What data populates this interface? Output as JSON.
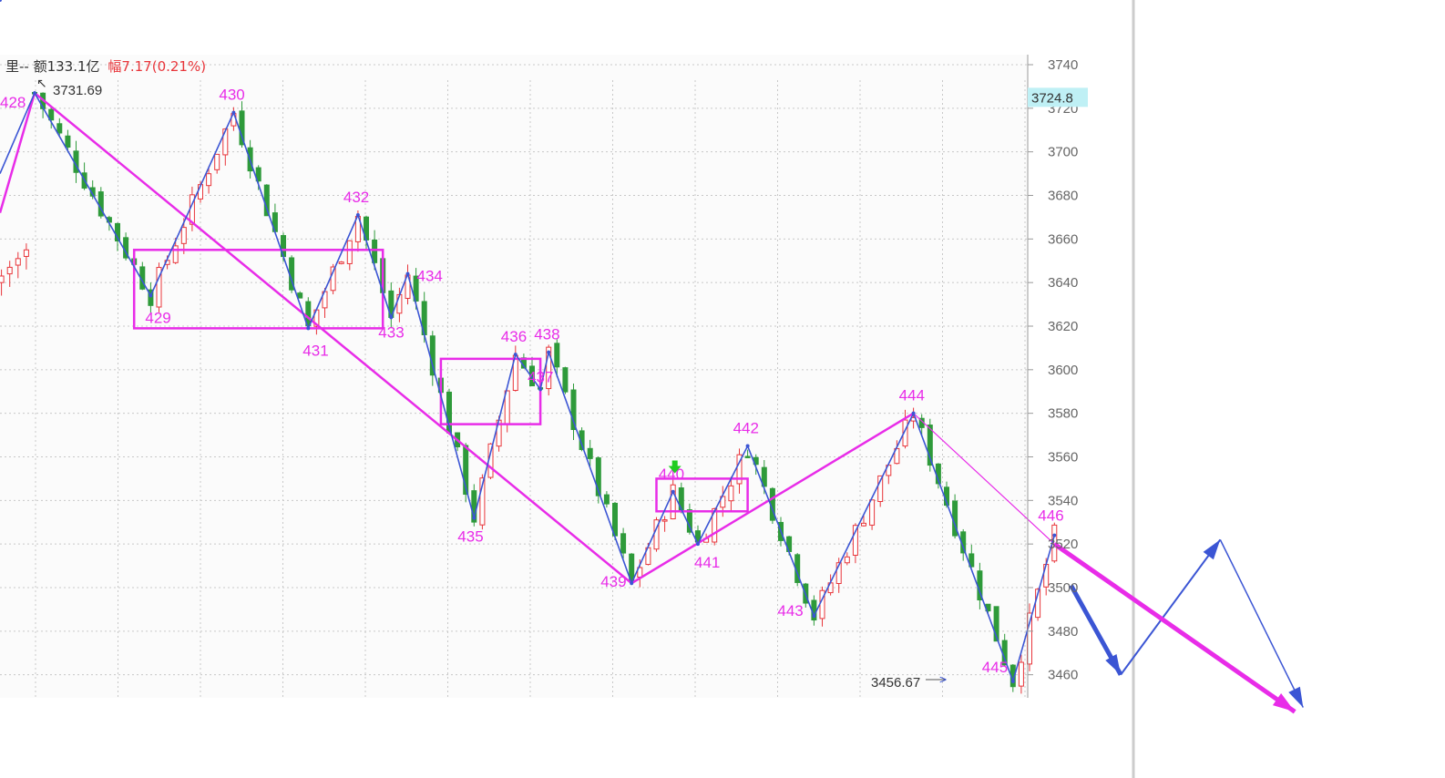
{
  "header": {
    "part1": "里-- 额133.1亿",
    "part2": "幅7.17(0.21%)",
    "part1_color": "#333333",
    "part2_color": "#e8353a"
  },
  "price_marks": {
    "high": "3731.69",
    "low": "3456.67"
  },
  "current_price": {
    "label": "3724.8",
    "value": 3724.8,
    "bg_color": "#bff0f5"
  },
  "colors": {
    "magenta": "#e82ce8",
    "blue": "#3b55d4",
    "candle_up": "#e8353a",
    "candle_down": "#2e9a3a",
    "signal_arrow": "#22cc22"
  },
  "chart_data": {
    "type": "candlestick",
    "ylim": [
      3440,
      3745
    ],
    "y_ticks": [
      3460,
      3480,
      3500,
      3520,
      3540,
      3560,
      3580,
      3600,
      3620,
      3640,
      3660,
      3680,
      3700,
      3720,
      3740
    ],
    "grid": true,
    "waves": [
      {
        "label": "428",
        "bar": 0,
        "price": 3727
      },
      {
        "label": "429",
        "bar": 14,
        "price": 3634
      },
      {
        "label": "430",
        "bar": 24,
        "price": 3718
      },
      {
        "label": "431",
        "bar": 33,
        "price": 3619
      },
      {
        "label": "432",
        "bar": 39,
        "price": 3671
      },
      {
        "label": "433",
        "bar": 43,
        "price": 3624
      },
      {
        "label": "434",
        "bar": 45,
        "price": 3644
      },
      {
        "label": "435",
        "bar": 53,
        "price": 3532
      },
      {
        "label": "436",
        "bar": 58,
        "price": 3607
      },
      {
        "label": "437",
        "bar": 61,
        "price": 3591
      },
      {
        "label": "438",
        "bar": 62,
        "price": 3608
      },
      {
        "label": "439",
        "bar": 72,
        "price": 3502
      },
      {
        "label": "440",
        "bar": 77,
        "price": 3544
      },
      {
        "label": "441",
        "bar": 80,
        "price": 3520
      },
      {
        "label": "442",
        "bar": 86,
        "price": 3565
      },
      {
        "label": "443",
        "bar": 94,
        "price": 3487
      },
      {
        "label": "444",
        "bar": 106,
        "price": 3580
      },
      {
        "label": "445",
        "bar": 118,
        "price": 3457
      },
      {
        "label": "446",
        "bar": 123,
        "price": 3524
      }
    ],
    "last_wave_point": {
      "bar": 125,
      "price": 3501
    },
    "boxes": [
      {
        "from_bar": 12,
        "to_bar": 42,
        "top": 3655,
        "bottom": 3619
      },
      {
        "from_bar": 49,
        "to_bar": 61,
        "top": 3605,
        "bottom": 3575
      },
      {
        "from_bar": 75,
        "to_bar": 86,
        "top": 3550,
        "bottom": 3535
      }
    ],
    "trend_lines": [
      {
        "from": {
          "bar": 0,
          "price": 3727
        },
        "to": {
          "bar": 72,
          "price": 3502
        }
      },
      {
        "from": {
          "bar": 72,
          "price": 3502
        },
        "to": {
          "bar": 106,
          "price": 3580
        }
      },
      {
        "from": {
          "bar": 106,
          "price": 3580
        },
        "to": {
          "bar": 123,
          "price": 3520
        }
      }
    ],
    "projections": {
      "blue": [
        {
          "bar": 125,
          "price": 3501
        },
        {
          "bar": 131,
          "price": 3460
        },
        {
          "bar": 143,
          "price": 3522
        },
        {
          "bar": 153,
          "price": 3445
        }
      ],
      "magenta": [
        {
          "bar": 123,
          "price": 3520
        },
        {
          "bar": 152,
          "price": 3443
        }
      ]
    },
    "signal_bar": 77,
    "signal_price": 3555
  }
}
